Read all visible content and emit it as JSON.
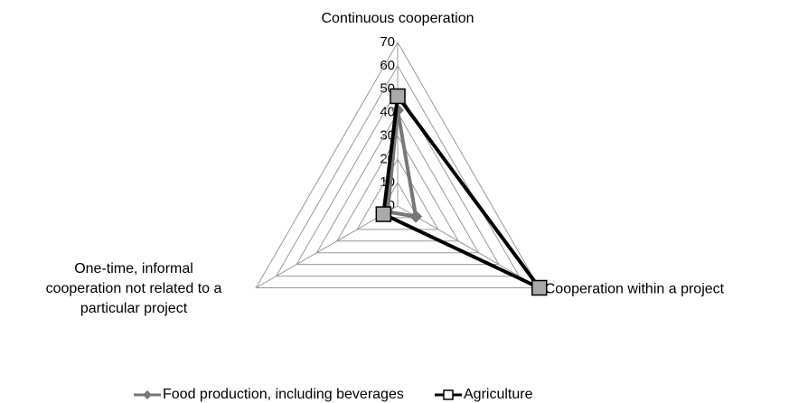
{
  "chart_data": {
    "type": "radar",
    "categories": [
      "Continuous cooperation",
      "Cooperation within a project",
      "One-time, informal cooperation not related to a particular project"
    ],
    "series": [
      {
        "name": "Food production, including beverages",
        "color": "#777777",
        "values": [
          41,
          9,
          5
        ]
      },
      {
        "name": "Agriculture",
        "color": "#000000",
        "values": [
          47,
          70,
          7
        ]
      }
    ],
    "ylim": [
      0,
      70
    ],
    "yticks": [
      0,
      10,
      20,
      30,
      40,
      50,
      60,
      70
    ],
    "grid": true,
    "legend": "bottom"
  }
}
